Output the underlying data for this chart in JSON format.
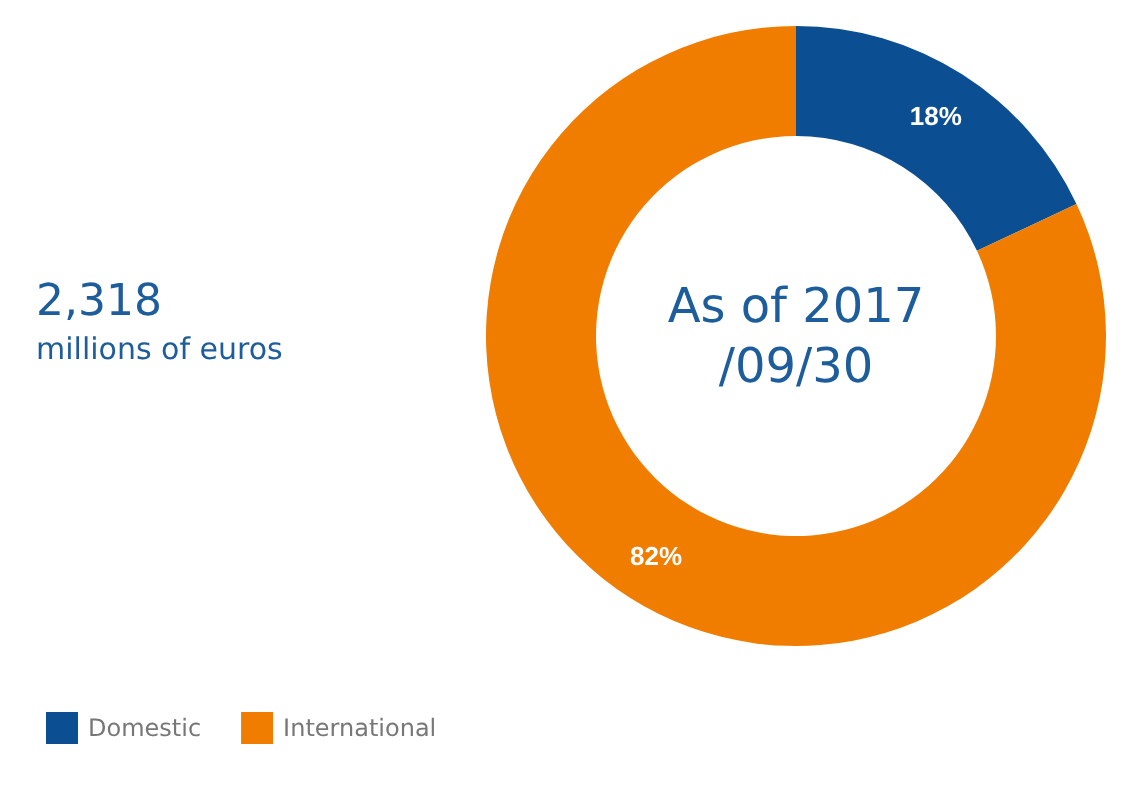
{
  "chart_data": {
    "type": "donut",
    "categories": [
      "Domestic",
      "International"
    ],
    "values": [
      18,
      82
    ],
    "colors": [
      "#0b4f92",
      "#f07d00"
    ],
    "value_labels": [
      "18%",
      "82%"
    ],
    "annotations": [
      "2,318",
      "millions of euros",
      "As of 2017/09/30"
    ],
    "legend": "bottom left"
  }
}
